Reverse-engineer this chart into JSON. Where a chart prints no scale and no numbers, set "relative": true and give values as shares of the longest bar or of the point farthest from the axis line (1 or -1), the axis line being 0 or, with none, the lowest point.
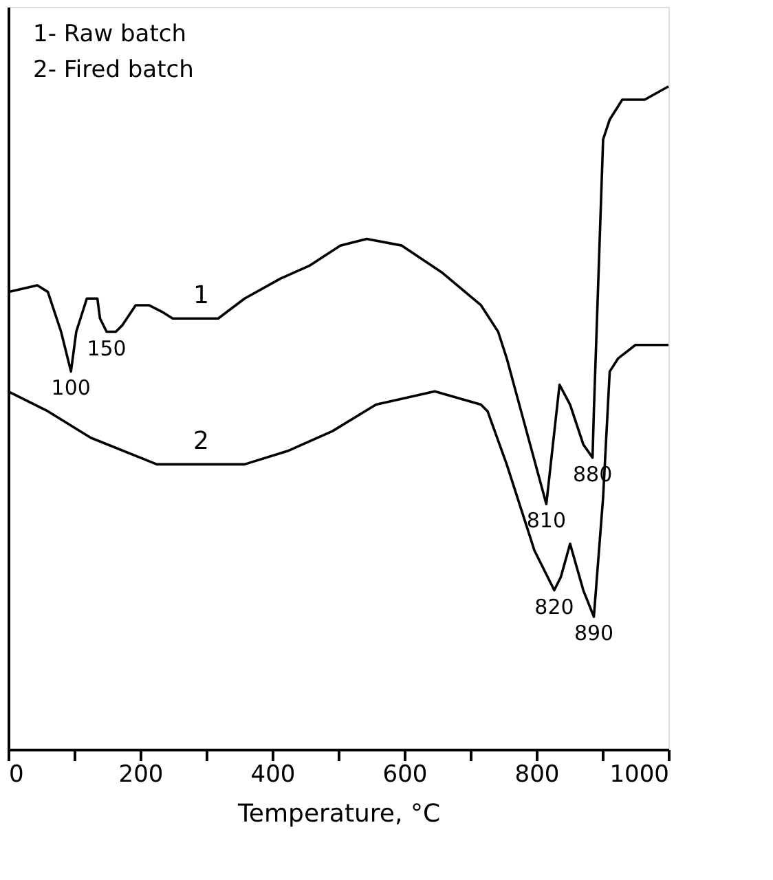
{
  "chart_data": {
    "type": "line",
    "relative": true,
    "xlabel": "Temperature, °C",
    "xlim": [
      0,
      1000
    ],
    "xticks": [
      0,
      {
        "value": 100,
        "label": null
      },
      200,
      {
        "value": 300,
        "label": null
      },
      400,
      {
        "value": 500,
        "label": null
      },
      600,
      {
        "value": 700,
        "label": null
      },
      800,
      {
        "value": 900,
        "label": null
      },
      1000
    ],
    "grid": false,
    "marker": "none",
    "line_style": "solid",
    "series": [
      {
        "name": "1",
        "color": "#000000",
        "x": [
          0,
          44,
          60,
          80,
          95,
          103,
          119,
          129,
          135,
          139,
          149,
          163,
          173,
          193,
          213,
          233,
          249,
          292,
          318,
          358,
          412,
          457,
          503,
          543,
          596,
          656,
          716,
          742,
          755,
          815,
          835,
          851,
          871,
          885,
          887,
          901,
          911,
          930,
          964,
          1000
        ],
        "values": [
          0.69,
          0.7,
          0.69,
          0.63,
          0.57,
          0.63,
          0.68,
          0.68,
          0.68,
          0.65,
          0.63,
          0.63,
          0.64,
          0.67,
          0.67,
          0.66,
          0.65,
          0.65,
          0.65,
          0.68,
          0.71,
          0.73,
          0.76,
          0.77,
          0.76,
          0.72,
          0.67,
          0.63,
          0.59,
          0.37,
          0.55,
          0.52,
          0.46,
          0.44,
          0.51,
          0.92,
          0.95,
          0.98,
          0.98,
          1.0
        ]
      },
      {
        "name": "2",
        "color": "#000000",
        "x": [
          0,
          60,
          125,
          225,
          292,
          358,
          423,
          491,
          557,
          646,
          716,
          726,
          755,
          797,
          827,
          837,
          851,
          871,
          887,
          901,
          911,
          924,
          950,
          1000
        ],
        "values": [
          0.54,
          0.51,
          0.47,
          0.43,
          0.43,
          0.43,
          0.45,
          0.48,
          0.52,
          0.54,
          0.52,
          0.51,
          0.43,
          0.3,
          0.24,
          0.26,
          0.31,
          0.24,
          0.2,
          0.38,
          0.57,
          0.59,
          0.61,
          0.61
        ]
      }
    ],
    "annotations": [
      "1- Raw batch",
      "2- Fired batch",
      {
        "text": "100",
        "x": 95,
        "y": 0.57
      },
      {
        "text": "150",
        "x": 149,
        "y": 0.63
      },
      {
        "text": "810",
        "x": 815,
        "y": 0.37
      },
      {
        "text": "880",
        "x": 885,
        "y": 0.44
      },
      {
        "text": "820",
        "x": 827,
        "y": 0.24
      },
      {
        "text": "890",
        "x": 887,
        "y": 0.2
      }
    ]
  }
}
